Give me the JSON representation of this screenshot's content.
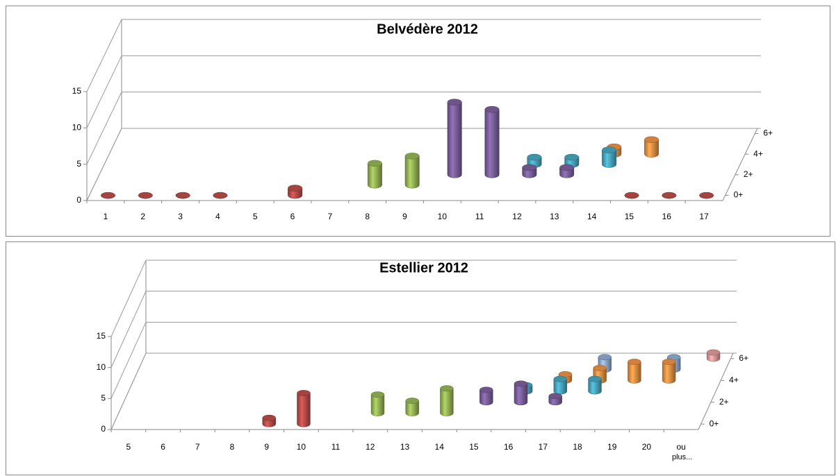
{
  "chart_data": [
    {
      "type": "bar3d",
      "title": "Belvédère 2012",
      "categories": [
        "1",
        "2",
        "3",
        "4",
        "5",
        "6",
        "7",
        "8",
        "9",
        "10",
        "11",
        "12",
        "13",
        "14",
        "15",
        "16",
        "17"
      ],
      "ylim": [
        0,
        15
      ],
      "yticks": [
        0,
        5,
        10,
        15
      ],
      "grid": true,
      "series": [
        {
          "name": "0+",
          "color": "#c0504d",
          "values": [
            0,
            0,
            0,
            0,
            null,
            1,
            null,
            null,
            null,
            null,
            null,
            null,
            null,
            null,
            0,
            0,
            0
          ]
        },
        {
          "name": null,
          "color": "#9bbb59",
          "values": [
            null,
            null,
            null,
            null,
            null,
            null,
            null,
            3,
            4,
            null,
            null,
            null,
            null,
            null,
            null,
            null,
            null
          ]
        },
        {
          "name": "2+",
          "color": "#8064a2",
          "values": [
            null,
            null,
            null,
            null,
            null,
            null,
            null,
            null,
            null,
            10,
            9,
            1,
            1,
            null,
            null,
            null,
            null
          ]
        },
        {
          "name": null,
          "color": "#4bacc6",
          "values": [
            null,
            null,
            null,
            null,
            null,
            null,
            null,
            null,
            null,
            null,
            null,
            1,
            1,
            2,
            null,
            null,
            null
          ]
        },
        {
          "name": "4+",
          "color": "#f79646",
          "values": [
            null,
            null,
            null,
            null,
            null,
            null,
            null,
            null,
            null,
            null,
            null,
            null,
            null,
            1,
            2,
            null,
            null
          ]
        },
        {
          "name": null,
          "values": [
            null,
            null,
            null,
            null,
            null,
            null,
            null,
            null,
            null,
            null,
            null,
            null,
            null,
            null,
            null,
            null,
            null
          ]
        },
        {
          "name": "6+",
          "values": [
            null,
            null,
            null,
            null,
            null,
            null,
            null,
            null,
            null,
            null,
            null,
            null,
            null,
            null,
            null,
            null,
            null
          ]
        }
      ]
    },
    {
      "type": "bar3d",
      "title": "Estellier 2012",
      "categories": [
        "5",
        "6",
        "7",
        "8",
        "9",
        "10",
        "11",
        "12",
        "13",
        "14",
        "15",
        "16",
        "17",
        "18",
        "19",
        "20",
        "ou plus..."
      ],
      "ylim": [
        0,
        15
      ],
      "yticks": [
        0,
        5,
        10,
        15
      ],
      "grid": true,
      "series": [
        {
          "name": "0+",
          "color": "#c0504d",
          "values": [
            null,
            null,
            null,
            null,
            1,
            5,
            null,
            null,
            null,
            null,
            null,
            null,
            null,
            null,
            null,
            null,
            null
          ]
        },
        {
          "name": null,
          "color": "#9bbb59",
          "values": [
            null,
            null,
            null,
            null,
            null,
            null,
            null,
            3,
            2,
            4,
            null,
            null,
            null,
            null,
            null,
            null,
            null
          ]
        },
        {
          "name": "2+",
          "color": "#8064a2",
          "values": [
            null,
            null,
            null,
            null,
            null,
            null,
            null,
            null,
            null,
            null,
            2,
            3,
            1,
            null,
            null,
            null,
            null
          ]
        },
        {
          "name": null,
          "color": "#4bacc6",
          "values": [
            null,
            null,
            null,
            null,
            null,
            null,
            null,
            null,
            null,
            null,
            null,
            1,
            2,
            2,
            null,
            null,
            null
          ]
        },
        {
          "name": "4+",
          "color": "#f79646",
          "values": [
            null,
            null,
            null,
            null,
            null,
            null,
            null,
            null,
            null,
            null,
            null,
            null,
            1,
            2,
            3,
            3,
            null
          ]
        },
        {
          "name": null,
          "color": "#95b3d7",
          "values": [
            null,
            null,
            null,
            null,
            null,
            null,
            null,
            null,
            null,
            null,
            null,
            null,
            null,
            2,
            null,
            2,
            null
          ]
        },
        {
          "name": "6+",
          "color": "#e6a0a0",
          "values": [
            null,
            null,
            null,
            null,
            null,
            null,
            null,
            null,
            null,
            null,
            null,
            null,
            null,
            null,
            null,
            null,
            1
          ]
        }
      ]
    }
  ]
}
